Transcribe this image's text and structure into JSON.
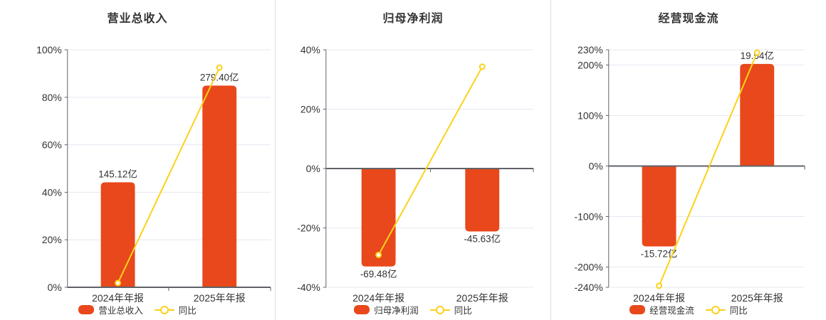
{
  "colors": {
    "bar": "#e8481b",
    "line": "#fdd118",
    "grid": "#e4e8f1",
    "axis_dark": "#5f6368",
    "text": "#333333",
    "divider": "#dddddd",
    "marker_fill": "#ffffff",
    "background": "#ffffff"
  },
  "chart_data": [
    {
      "type": "bar",
      "title": "营业总收入",
      "categories": [
        "2024年年报",
        "2025年年报"
      ],
      "bar_series": {
        "name": "营业总收入",
        "values_yi": [
          145.12,
          279.4
        ],
        "labels": [
          "145.12亿",
          "279.40亿"
        ],
        "display_pct": [
          44.2,
          84.9
        ]
      },
      "line_series": {
        "name": "同比",
        "values_pct": [
          1.8,
          92.5
        ]
      },
      "y_axis": {
        "min": 0,
        "max": 100,
        "ticks": [
          0,
          20,
          40,
          60,
          80,
          100
        ],
        "unit": "%"
      },
      "grid": true,
      "legend_position": "bottom"
    },
    {
      "type": "bar",
      "title": "归母净利润",
      "categories": [
        "2024年年报",
        "2025年年报"
      ],
      "bar_series": {
        "name": "归母净利润",
        "values_yi": [
          -69.48,
          -45.63
        ],
        "labels": [
          "-69.48亿",
          "-45.63亿"
        ],
        "display_pct": [
          -33.0,
          -21.2
        ]
      },
      "line_series": {
        "name": "同比",
        "values_pct": [
          -29.1,
          34.3
        ]
      },
      "y_axis": {
        "min": -40,
        "max": 40,
        "ticks": [
          -40,
          -20,
          0,
          20,
          40
        ],
        "unit": "%"
      },
      "grid": true,
      "legend_position": "bottom"
    },
    {
      "type": "bar",
      "title": "经营现金流",
      "categories": [
        "2024年年报",
        "2025年年报"
      ],
      "bar_series": {
        "name": "经营现金流",
        "values_yi": [
          -15.72,
          19.54
        ],
        "labels": [
          "-15.72亿",
          "19.54亿"
        ],
        "display_pct": [
          -159,
          202
        ]
      },
      "line_series": {
        "name": "同比",
        "values_pct": [
          -237,
          224.3
        ]
      },
      "y_axis": {
        "min": -240,
        "max": 230,
        "ticks": [
          -240,
          -200,
          -100,
          0,
          100,
          200,
          230
        ],
        "unit": "%"
      },
      "grid": true,
      "legend_position": "bottom"
    }
  ]
}
